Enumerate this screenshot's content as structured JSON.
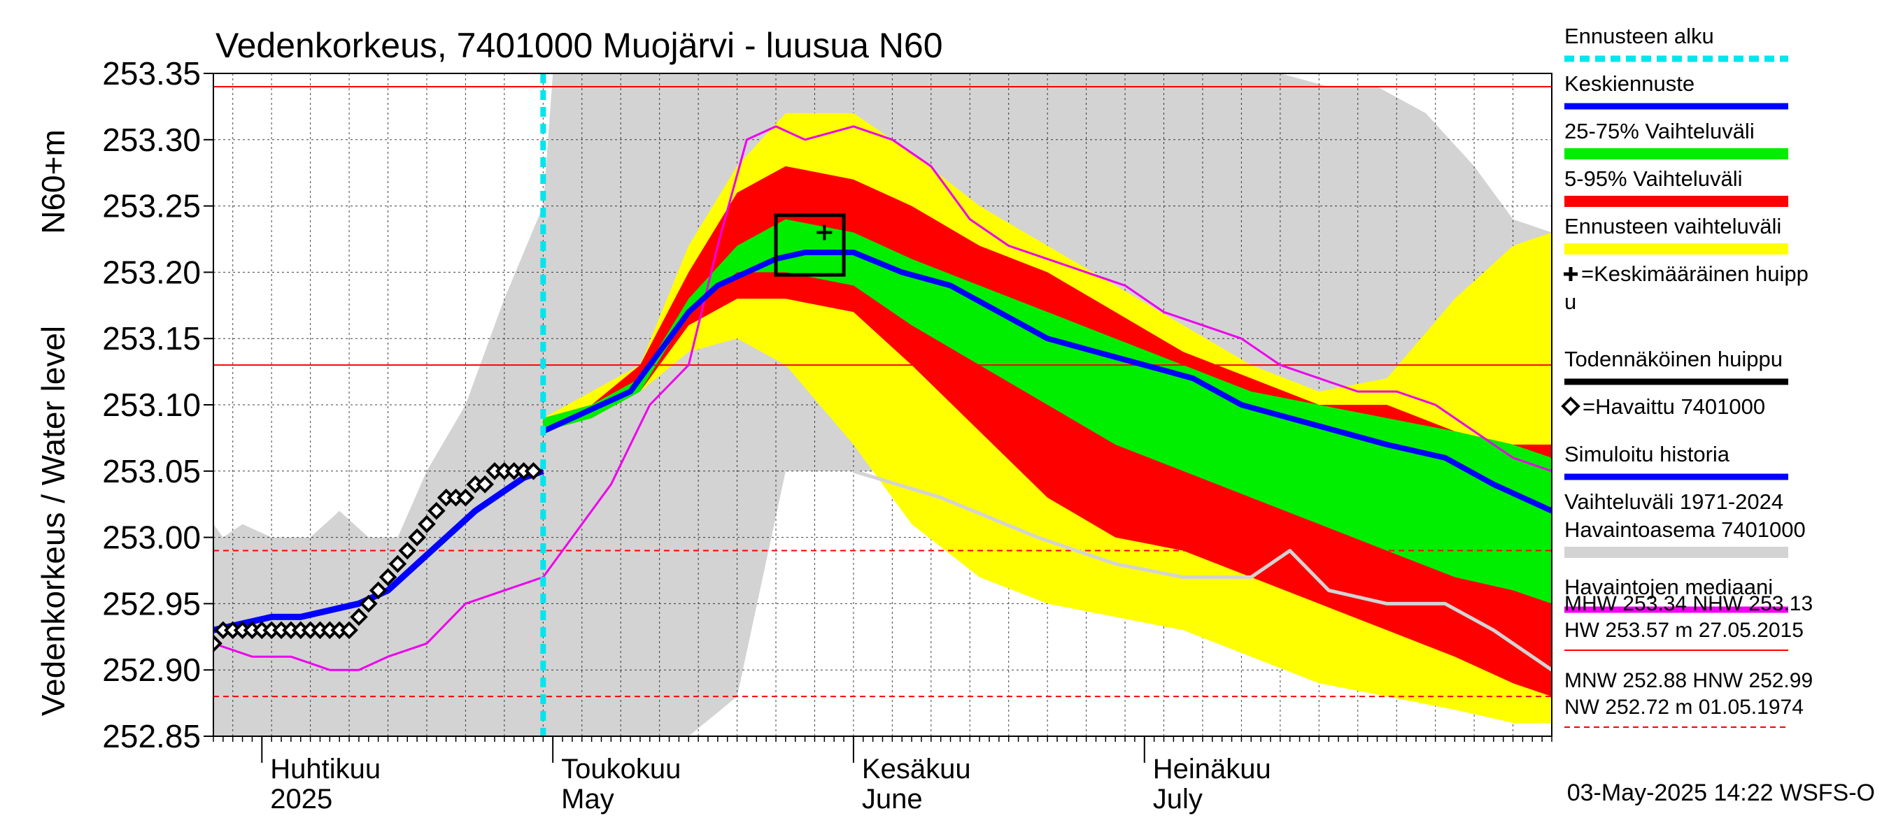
{
  "chart_data": {
    "type": "area",
    "title": "Vedenkorkeus, 7401000 Muojärvi - luusua N60",
    "ylabel": "Vedenkorkeus / Water level",
    "ylabel_unit": "N60+m",
    "ylim": [
      252.85,
      253.35
    ],
    "y_ticks": [
      "253.35",
      "253.30",
      "253.25",
      "253.20",
      "253.15",
      "253.10",
      "253.05",
      "253.00",
      "252.95",
      "252.90",
      "252.85"
    ],
    "x_start": "2025-03-27",
    "x_end": "2025-08-12",
    "x_month_labels": [
      {
        "date": "2025-04-01",
        "fi": "Huhtikuu",
        "en": "2025"
      },
      {
        "date": "2025-05-01",
        "fi": "Toukokuu",
        "en": "May"
      },
      {
        "date": "2025-06-01",
        "fi": "Kesäkuu",
        "en": "June"
      },
      {
        "date": "2025-07-01",
        "fi": "Heinäkuu",
        "en": "July"
      }
    ],
    "forecast_start": "2025-04-30",
    "reference_lines": [
      {
        "name": "MHW",
        "value": 253.34,
        "style": "solid"
      },
      {
        "name": "NHW",
        "value": 253.13,
        "style": "solid"
      },
      {
        "name": "HNW",
        "value": 252.99,
        "style": "dashed"
      },
      {
        "name": "MNW",
        "value": 252.88,
        "style": "dashed"
      }
    ],
    "series": {
      "history_range": {
        "x": [
          "2025-03-27",
          "2025-03-28",
          "2025-03-30",
          "2025-04-02",
          "2025-04-06",
          "2025-04-09",
          "2025-04-12",
          "2025-04-15",
          "2025-04-18",
          "2025-04-22",
          "2025-04-26",
          "2025-04-30",
          "2025-05-01",
          "2025-05-05",
          "2025-05-10",
          "2025-05-15",
          "2025-05-20",
          "2025-05-25",
          "2025-06-01",
          "2025-06-10",
          "2025-06-20",
          "2025-06-28",
          "2025-07-05",
          "2025-07-10",
          "2025-07-15",
          "2025-07-20",
          "2025-07-25",
          "2025-07-30",
          "2025-08-04",
          "2025-08-08",
          "2025-08-12"
        ],
        "upper": [
          253.01,
          253.0,
          253.01,
          253.0,
          253.0,
          253.02,
          253.0,
          253.0,
          253.05,
          253.1,
          253.18,
          253.25,
          253.35,
          253.35,
          253.35,
          253.35,
          253.35,
          253.35,
          253.35,
          253.35,
          253.35,
          253.35,
          253.35,
          253.35,
          253.35,
          253.34,
          253.34,
          253.32,
          253.28,
          253.24,
          253.23
        ],
        "lower": [
          252.85,
          252.85,
          252.85,
          252.85,
          252.85,
          252.85,
          252.85,
          252.85,
          252.85,
          252.85,
          252.85,
          252.85,
          252.85,
          252.85,
          252.85,
          252.85,
          252.88,
          253.05,
          253.05,
          253.05,
          253.03,
          252.99,
          252.98,
          252.98,
          252.98,
          252.98,
          252.97,
          252.95,
          252.9,
          252.88,
          252.87
        ]
      },
      "forecast_range": {
        "x": [
          "2025-04-30",
          "2025-05-05",
          "2025-05-10",
          "2025-05-15",
          "2025-05-20",
          "2025-05-25",
          "2025-06-01",
          "2025-06-07",
          "2025-06-14",
          "2025-06-21",
          "2025-06-28",
          "2025-07-05",
          "2025-07-12",
          "2025-07-19",
          "2025-07-26",
          "2025-08-02",
          "2025-08-08",
          "2025-08-12"
        ],
        "upper": [
          253.09,
          253.11,
          253.13,
          253.22,
          253.28,
          253.32,
          253.32,
          253.29,
          253.25,
          253.22,
          253.19,
          253.16,
          253.13,
          253.11,
          253.12,
          253.18,
          253.22,
          253.23
        ],
        "lower": [
          253.08,
          253.09,
          253.11,
          253.14,
          253.15,
          253.13,
          253.07,
          253.01,
          252.97,
          252.95,
          252.94,
          252.93,
          252.91,
          252.89,
          252.88,
          252.87,
          252.86,
          252.86
        ]
      },
      "p5_95": {
        "x": [
          "2025-04-30",
          "2025-05-05",
          "2025-05-10",
          "2025-05-15",
          "2025-05-20",
          "2025-05-25",
          "2025-06-01",
          "2025-06-07",
          "2025-06-14",
          "2025-06-21",
          "2025-06-28",
          "2025-07-05",
          "2025-07-12",
          "2025-07-19",
          "2025-07-26",
          "2025-08-02",
          "2025-08-08",
          "2025-08-12"
        ],
        "upper": [
          253.09,
          253.1,
          253.13,
          253.2,
          253.26,
          253.28,
          253.27,
          253.25,
          253.22,
          253.2,
          253.17,
          253.14,
          253.12,
          253.1,
          253.1,
          253.08,
          253.07,
          253.07
        ],
        "lower": [
          253.08,
          253.09,
          253.11,
          253.16,
          253.18,
          253.18,
          253.17,
          253.13,
          253.08,
          253.03,
          253.0,
          252.99,
          252.97,
          252.95,
          252.93,
          252.91,
          252.89,
          252.88
        ]
      },
      "p25_75": {
        "x": [
          "2025-04-30",
          "2025-05-05",
          "2025-05-10",
          "2025-05-15",
          "2025-05-20",
          "2025-05-25",
          "2025-06-01",
          "2025-06-07",
          "2025-06-14",
          "2025-06-21",
          "2025-06-28",
          "2025-07-05",
          "2025-07-12",
          "2025-07-19",
          "2025-07-26",
          "2025-08-02",
          "2025-08-08",
          "2025-08-12"
        ],
        "upper": [
          253.09,
          253.1,
          253.12,
          253.18,
          253.22,
          253.24,
          253.23,
          253.21,
          253.19,
          253.17,
          253.15,
          253.13,
          253.11,
          253.1,
          253.09,
          253.08,
          253.07,
          253.06
        ],
        "lower": [
          253.08,
          253.09,
          253.11,
          253.17,
          253.2,
          253.2,
          253.19,
          253.16,
          253.13,
          253.1,
          253.07,
          253.05,
          253.03,
          253.01,
          252.99,
          252.97,
          252.96,
          252.95
        ]
      },
      "mean_forecast": {
        "name": "Keskiennuste",
        "x": [
          "2025-04-30",
          "2025-05-03",
          "2025-05-06",
          "2025-05-09",
          "2025-05-12",
          "2025-05-15",
          "2025-05-18",
          "2025-05-21",
          "2025-05-24",
          "2025-05-27",
          "2025-06-01",
          "2025-06-06",
          "2025-06-11",
          "2025-06-16",
          "2025-06-21",
          "2025-06-26",
          "2025-07-01",
          "2025-07-06",
          "2025-07-11",
          "2025-07-16",
          "2025-07-21",
          "2025-07-26",
          "2025-08-01",
          "2025-08-06",
          "2025-08-12"
        ],
        "y": [
          253.08,
          253.09,
          253.1,
          253.11,
          253.14,
          253.17,
          253.19,
          253.2,
          253.21,
          253.215,
          253.215,
          253.2,
          253.19,
          253.17,
          253.15,
          253.14,
          253.13,
          253.12,
          253.1,
          253.09,
          253.08,
          253.07,
          253.06,
          253.04,
          253.02
        ]
      },
      "simulated_history": {
        "name": "Simuloitu historia",
        "x": [
          "2025-03-27",
          "2025-03-30",
          "2025-04-02",
          "2025-04-05",
          "2025-04-08",
          "2025-04-11",
          "2025-04-14",
          "2025-04-17",
          "2025-04-20",
          "2025-04-23",
          "2025-04-26",
          "2025-04-28",
          "2025-04-30"
        ],
        "y": [
          252.93,
          252.935,
          252.94,
          252.94,
          252.945,
          252.95,
          252.96,
          252.98,
          253.0,
          253.02,
          253.035,
          253.045,
          253.05
        ]
      },
      "observed": {
        "name": "Havaittu 7401000",
        "x": [
          "2025-03-27",
          "2025-03-28",
          "2025-03-29",
          "2025-03-30",
          "2025-03-31",
          "2025-04-01",
          "2025-04-02",
          "2025-04-03",
          "2025-04-04",
          "2025-04-05",
          "2025-04-06",
          "2025-04-07",
          "2025-04-08",
          "2025-04-09",
          "2025-04-10",
          "2025-04-11",
          "2025-04-12",
          "2025-04-13",
          "2025-04-14",
          "2025-04-15",
          "2025-04-16",
          "2025-04-17",
          "2025-04-18",
          "2025-04-19",
          "2025-04-20",
          "2025-04-21",
          "2025-04-22",
          "2025-04-23",
          "2025-04-24",
          "2025-04-25",
          "2025-04-26",
          "2025-04-27",
          "2025-04-28",
          "2025-04-29"
        ],
        "y": [
          252.92,
          252.93,
          252.93,
          252.93,
          252.93,
          252.93,
          252.93,
          252.93,
          252.93,
          252.93,
          252.93,
          252.93,
          252.93,
          252.93,
          252.93,
          252.94,
          252.95,
          252.96,
          252.97,
          252.98,
          252.99,
          253.0,
          253.01,
          253.02,
          253.03,
          253.03,
          253.03,
          253.04,
          253.04,
          253.05,
          253.05,
          253.05,
          253.05,
          253.05
        ]
      },
      "median": {
        "name": "Havaintojen mediaani",
        "x": [
          "2025-03-27",
          "2025-03-31",
          "2025-04-04",
          "2025-04-08",
          "2025-04-11",
          "2025-04-14",
          "2025-04-18",
          "2025-04-22",
          "2025-04-26",
          "2025-04-30",
          "2025-05-03",
          "2025-05-07",
          "2025-05-11",
          "2025-05-15",
          "2025-05-18",
          "2025-05-21",
          "2025-05-24",
          "2025-05-27",
          "2025-06-01",
          "2025-06-05",
          "2025-06-09",
          "2025-06-13",
          "2025-06-17",
          "2025-06-21",
          "2025-06-25",
          "2025-06-29",
          "2025-07-03",
          "2025-07-07",
          "2025-07-11",
          "2025-07-15",
          "2025-07-19",
          "2025-07-23",
          "2025-07-27",
          "2025-07-31",
          "2025-08-04",
          "2025-08-08",
          "2025-08-12"
        ],
        "y": [
          252.92,
          252.91,
          252.91,
          252.9,
          252.9,
          252.91,
          252.92,
          252.95,
          252.96,
          252.97,
          253.0,
          253.04,
          253.1,
          253.13,
          253.22,
          253.3,
          253.31,
          253.3,
          253.31,
          253.3,
          253.28,
          253.24,
          253.22,
          253.21,
          253.2,
          253.19,
          253.17,
          253.16,
          253.15,
          253.13,
          253.12,
          253.11,
          253.11,
          253.1,
          253.08,
          253.06,
          253.05
        ]
      },
      "observed_range_line": {
        "x": [
          "2025-06-01",
          "2025-06-10",
          "2025-06-20",
          "2025-06-28",
          "2025-07-05",
          "2025-07-12",
          "2025-07-16",
          "2025-07-20",
          "2025-07-26",
          "2025-08-01",
          "2025-08-06",
          "2025-08-12"
        ],
        "y": [
          253.05,
          253.03,
          253.0,
          252.98,
          252.97,
          252.97,
          252.99,
          252.96,
          252.95,
          252.95,
          252.93,
          252.9
        ]
      }
    },
    "peak_box": {
      "x0": "2025-05-24",
      "x1": "2025-05-31",
      "y0": 253.198,
      "y1": 253.243
    },
    "mean_peak": {
      "x": "2025-05-29",
      "y": 253.23
    },
    "legend": [
      {
        "label": "Ennusteen alku",
        "color": "#00e5ee",
        "style": "dashed"
      },
      {
        "label": "Keskiennuste",
        "color": "#0000ff",
        "style": "line"
      },
      {
        "label": "25-75% Vaihteluväli",
        "color": "#00ee00",
        "style": "band"
      },
      {
        "label": "5-95% Vaihteluväli",
        "color": "#ff0000",
        "style": "band"
      },
      {
        "label": "Ennusteen vaihteluväli",
        "color": "#ffff00",
        "style": "band"
      },
      {
        "label": "=Keskimääräinen huipp",
        "label2": "u",
        "color": "#000000",
        "style": "plus"
      },
      {
        "label": "Todennäköinen huippu",
        "color": "#000000",
        "style": "line"
      },
      {
        "label": "=Havaittu 7401000",
        "color": "#000000",
        "style": "diamond"
      },
      {
        "label": "Simuloitu historia",
        "color": "#0000ff",
        "style": "line"
      },
      {
        "label": "Vaihteluväli 1971-2024",
        "label2": " Havaintoasema 7401000",
        "color": "#d3d3d3",
        "style": "band"
      },
      {
        "label": "Havaintojen mediaani",
        "color": "#ee00ee",
        "style": "line"
      }
    ],
    "stats": [
      {
        "line1": "MHW 253.34 NHW 253.13",
        "line2": "HW 253.57 m 27.05.2015",
        "color": "#ff0000",
        "style": "solid"
      },
      {
        "line1": "MNW 252.88 HNW 252.99",
        "line2": "NW 252.72 m 01.05.1974",
        "color": "#ff0000",
        "style": "dashed"
      }
    ],
    "footer": "03-May-2025 14:22 WSFS-O",
    "colors": {
      "grey": "#d3d3d3",
      "yellow": "#ffff00",
      "red": "#ff0000",
      "green": "#00ee00",
      "blue": "#0000ff",
      "magenta": "#ee00ee",
      "cyan": "#00e5ee",
      "black": "#000000",
      "grid": "#000000"
    }
  }
}
